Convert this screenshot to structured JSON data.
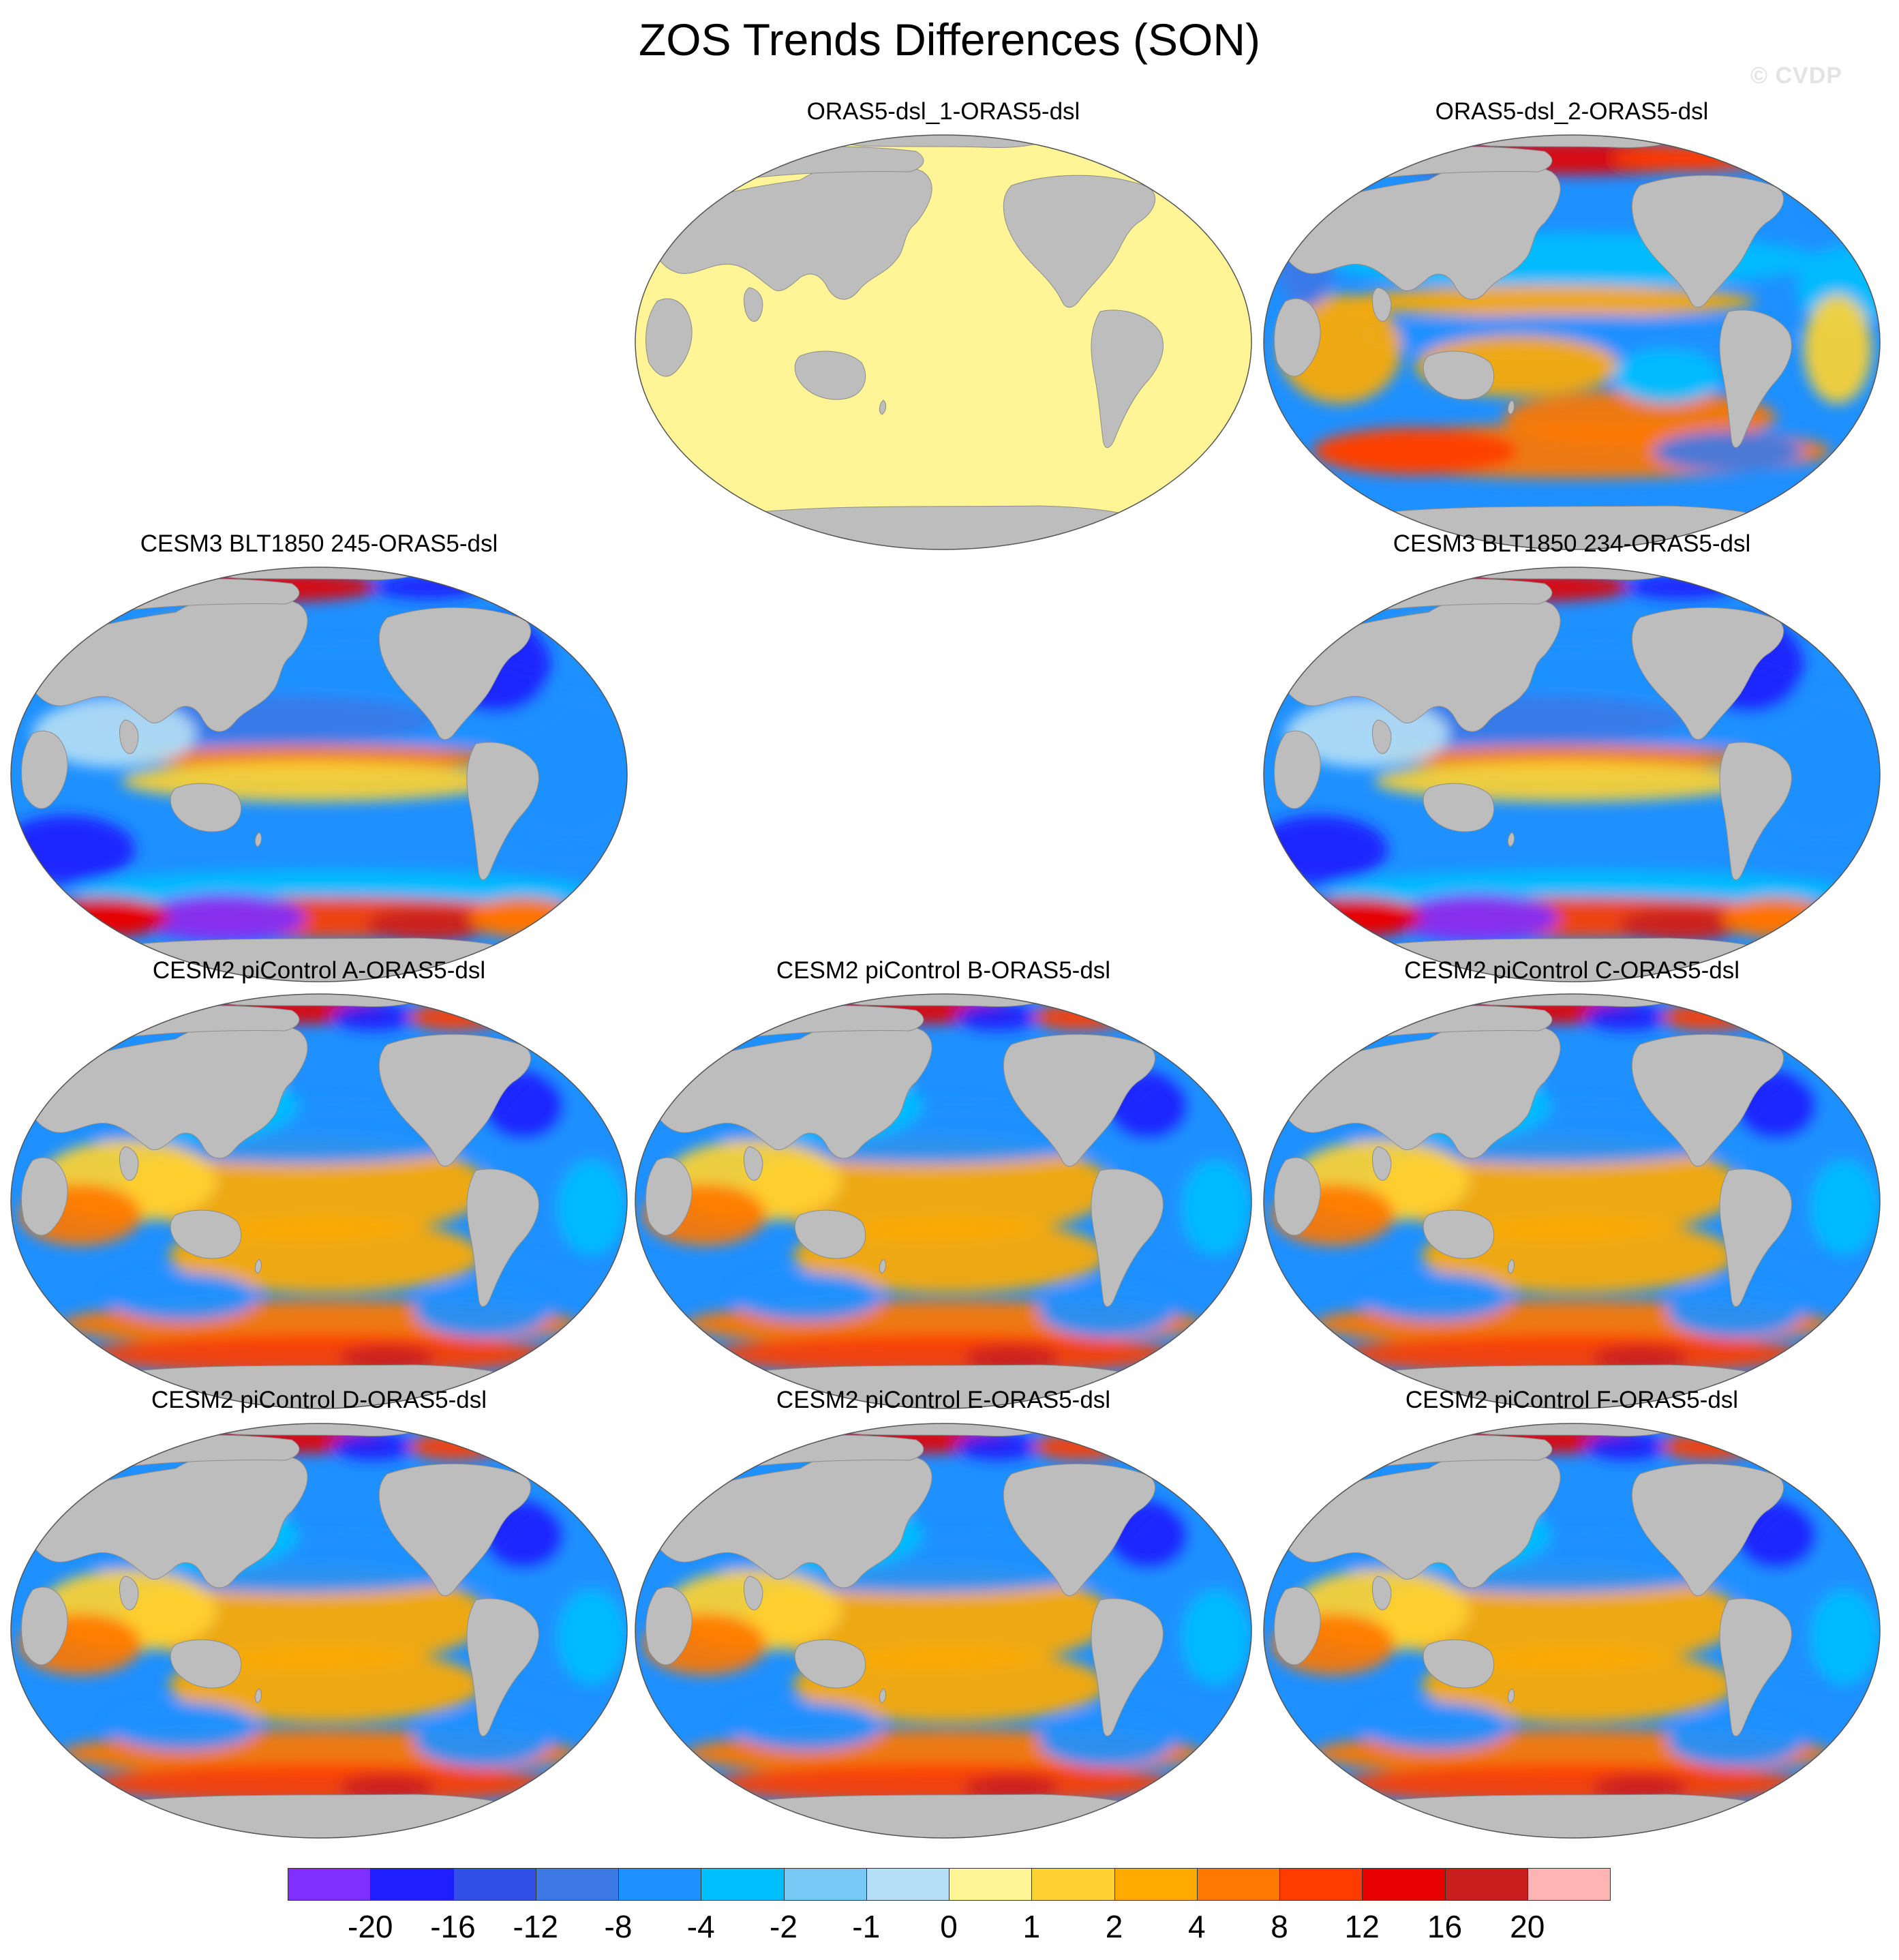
{
  "title": "ZOS Trends Differences (SON)",
  "credit": "© CVDP",
  "colors": {
    "land": "#bdbdbd",
    "background": "#ffffff"
  },
  "panels": [
    {
      "id": "p1",
      "label": "ORAS5-dsl_1-ORAS5-dsl",
      "pattern": "uniform"
    },
    {
      "id": "p2",
      "label": "ORAS5-dsl_2-ORAS5-dsl",
      "pattern": "mixed"
    },
    {
      "id": "p3",
      "label": "CESM3 BLT1850 245-ORAS5-dsl",
      "pattern": "cool"
    },
    {
      "id": "p4",
      "label": "CESM3 BLT1850 234-ORAS5-dsl",
      "pattern": "cool"
    },
    {
      "id": "p5",
      "label": "CESM2 piControl A-ORAS5-dsl",
      "pattern": "warm"
    },
    {
      "id": "p6",
      "label": "CESM2 piControl B-ORAS5-dsl",
      "pattern": "warm"
    },
    {
      "id": "p7",
      "label": "CESM2 piControl C-ORAS5-dsl",
      "pattern": "warm"
    },
    {
      "id": "p8",
      "label": "CESM2 piControl D-ORAS5-dsl",
      "pattern": "warm"
    },
    {
      "id": "p9",
      "label": "CESM2 piControl E-ORAS5-dsl",
      "pattern": "warm"
    },
    {
      "id": "p10",
      "label": "CESM2 piControl F-ORAS5-dsl",
      "pattern": "warm"
    }
  ],
  "colorbar": {
    "colors": [
      "#7f2fff",
      "#1e1eff",
      "#3050e6",
      "#3c78e6",
      "#1e90ff",
      "#00bfff",
      "#78c8f5",
      "#b4def5",
      "#fff596",
      "#ffd232",
      "#ffaa00",
      "#ff7800",
      "#ff3c00",
      "#e60000",
      "#c81e1e",
      "#ffb4b4"
    ],
    "labels": [
      "-20",
      "-16",
      "-12",
      "-8",
      "-4",
      "-2",
      "-1",
      "0",
      "1",
      "2",
      "4",
      "8",
      "12",
      "16",
      "20"
    ]
  }
}
